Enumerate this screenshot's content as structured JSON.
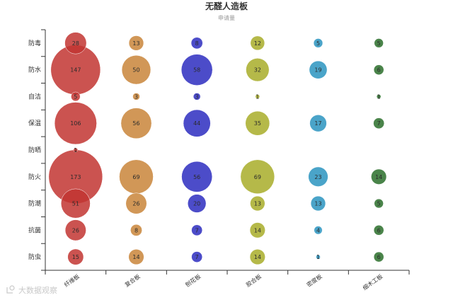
{
  "chart_data": {
    "type": "scatter",
    "title": "无醛人造板",
    "subtitle": "申请量",
    "categories_x": [
      "纤维板",
      "复合板",
      "刨花板",
      "胶合板",
      "密度板",
      "细木工板"
    ],
    "categories_y": [
      "防毒",
      "防水",
      "自洁",
      "保温",
      "防晒",
      "防火",
      "防潮",
      "抗菌",
      "防虫"
    ],
    "size_label": "申请量",
    "max_value": 173,
    "colors": [
      "#c23531",
      "#c9853a",
      "#2d2dbf",
      "#a8ad29",
      "#2a94bf",
      "#2a6e2a"
    ],
    "points": [
      {
        "x": 0,
        "y": 0,
        "v": 28
      },
      {
        "x": 1,
        "y": 0,
        "v": 13
      },
      {
        "x": 2,
        "y": 0,
        "v": 8
      },
      {
        "x": 3,
        "y": 0,
        "v": 12
      },
      {
        "x": 4,
        "y": 0,
        "v": 5
      },
      {
        "x": 5,
        "y": 0,
        "v": 5
      },
      {
        "x": 0,
        "y": 1,
        "v": 147
      },
      {
        "x": 1,
        "y": 1,
        "v": 50
      },
      {
        "x": 2,
        "y": 1,
        "v": 58
      },
      {
        "x": 3,
        "y": 1,
        "v": 32
      },
      {
        "x": 4,
        "y": 1,
        "v": 19
      },
      {
        "x": 5,
        "y": 1,
        "v": 6
      },
      {
        "x": 0,
        "y": 2,
        "v": 5
      },
      {
        "x": 1,
        "y": 2,
        "v": 3
      },
      {
        "x": 2,
        "y": 2,
        "v": 3
      },
      {
        "x": 3,
        "y": 2,
        "v": 1
      },
      {
        "x": 5,
        "y": 2,
        "v": 1
      },
      {
        "x": 0,
        "y": 3,
        "v": 106
      },
      {
        "x": 1,
        "y": 3,
        "v": 56
      },
      {
        "x": 2,
        "y": 3,
        "v": 44
      },
      {
        "x": 3,
        "y": 3,
        "v": 35
      },
      {
        "x": 4,
        "y": 3,
        "v": 17
      },
      {
        "x": 5,
        "y": 3,
        "v": 7
      },
      {
        "x": 0,
        "y": 4,
        "v": 1
      },
      {
        "x": 0,
        "y": 5,
        "v": 173
      },
      {
        "x": 1,
        "y": 5,
        "v": 69
      },
      {
        "x": 2,
        "y": 5,
        "v": 56
      },
      {
        "x": 3,
        "y": 5,
        "v": 69
      },
      {
        "x": 4,
        "y": 5,
        "v": 23
      },
      {
        "x": 5,
        "y": 5,
        "v": 14
      },
      {
        "x": 0,
        "y": 6,
        "v": 51
      },
      {
        "x": 1,
        "y": 6,
        "v": 26
      },
      {
        "x": 2,
        "y": 6,
        "v": 20
      },
      {
        "x": 3,
        "y": 6,
        "v": 13
      },
      {
        "x": 4,
        "y": 6,
        "v": 13
      },
      {
        "x": 5,
        "y": 6,
        "v": 5
      },
      {
        "x": 0,
        "y": 7,
        "v": 26
      },
      {
        "x": 1,
        "y": 7,
        "v": 8
      },
      {
        "x": 2,
        "y": 7,
        "v": 7
      },
      {
        "x": 3,
        "y": 7,
        "v": 14
      },
      {
        "x": 4,
        "y": 7,
        "v": 4
      },
      {
        "x": 5,
        "y": 7,
        "v": 6
      },
      {
        "x": 0,
        "y": 8,
        "v": 15
      },
      {
        "x": 1,
        "y": 8,
        "v": 14
      },
      {
        "x": 2,
        "y": 8,
        "v": 7
      },
      {
        "x": 3,
        "y": 8,
        "v": 14
      },
      {
        "x": 4,
        "y": 8,
        "v": 1
      },
      {
        "x": 5,
        "y": 8,
        "v": 6
      }
    ]
  },
  "watermark": {
    "text": "大数据观察",
    "icon": "logo-icon"
  }
}
